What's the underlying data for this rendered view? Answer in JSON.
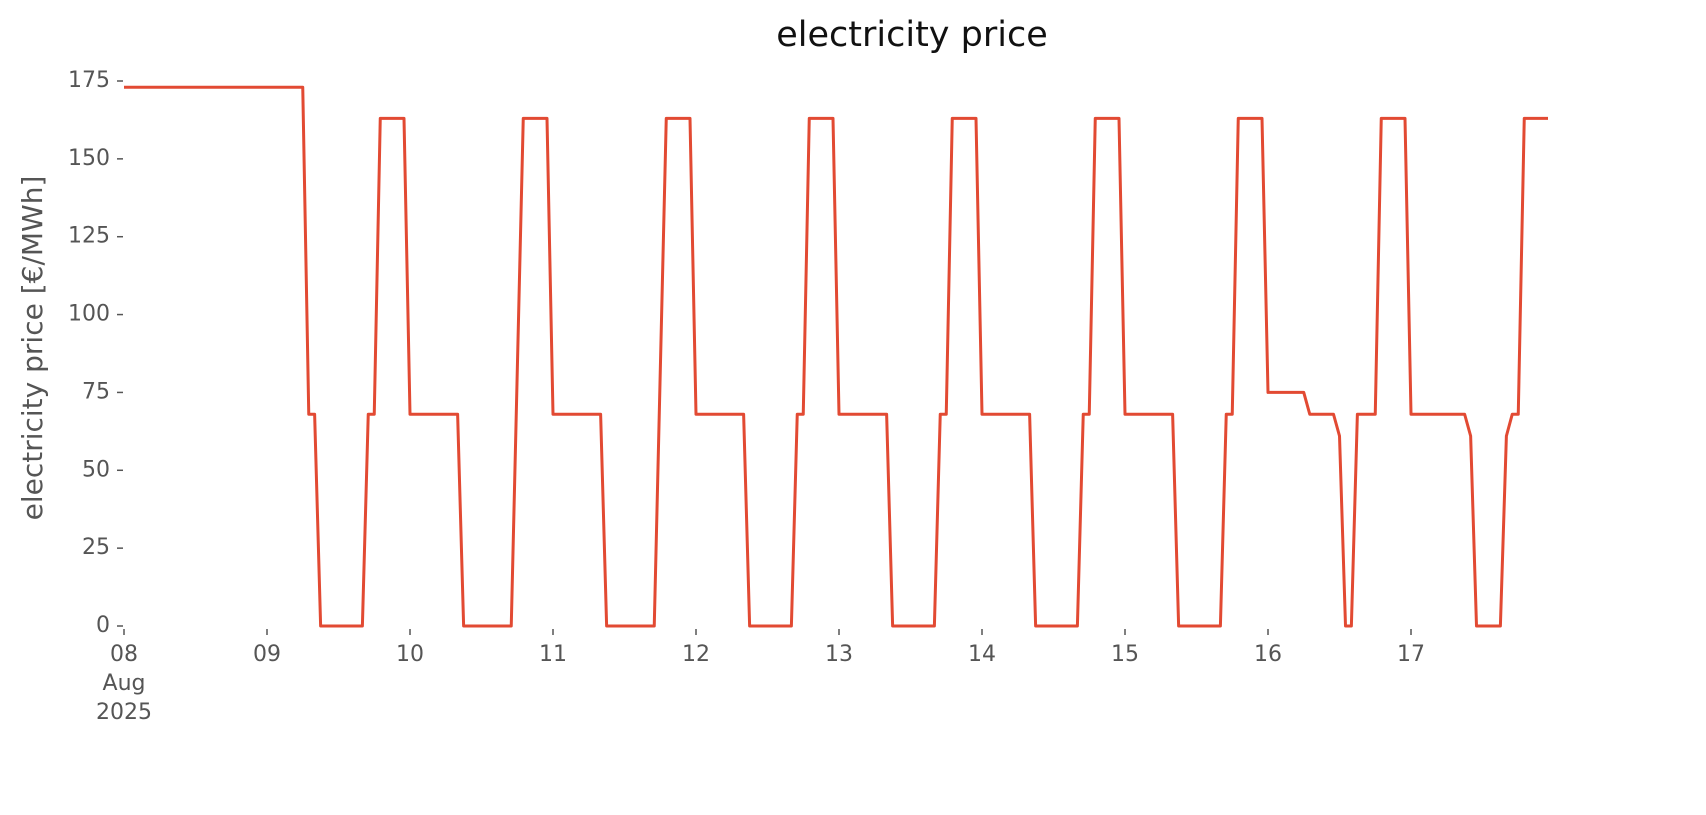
{
  "chart_data": {
    "type": "line",
    "title": "electricity price",
    "ylabel": "electricity price [€/MWh]",
    "x": [
      8,
      9.25,
      9.292,
      9.333,
      9.375,
      9.667,
      9.708,
      9.75,
      9.792,
      9.958,
      10,
      10.333,
      10.375,
      10.708,
      10.792,
      10.958,
      11,
      11.333,
      11.375,
      11.708,
      11.792,
      11.958,
      12,
      12.333,
      12.375,
      12.667,
      12.708,
      12.75,
      12.792,
      12.958,
      13,
      13.333,
      13.375,
      13.667,
      13.708,
      13.75,
      13.792,
      13.958,
      14,
      14.333,
      14.375,
      14.667,
      14.708,
      14.75,
      14.792,
      14.958,
      15,
      15.333,
      15.375,
      15.667,
      15.708,
      15.75,
      15.792,
      15.958,
      16,
      16.25,
      16.292,
      16.458,
      16.5,
      16.542,
      16.583,
      16.625,
      16.75,
      16.792,
      16.958,
      17,
      17.375,
      17.417,
      17.458,
      17.625,
      17.667,
      17.708,
      17.75,
      17.792,
      17.958
    ],
    "values": [
      173,
      173,
      68,
      68,
      0,
      0,
      68,
      68,
      163,
      163,
      68,
      68,
      0,
      0,
      163,
      163,
      68,
      68,
      0,
      0,
      163,
      163,
      68,
      68,
      0,
      0,
      68,
      68,
      163,
      163,
      68,
      68,
      0,
      0,
      68,
      68,
      163,
      163,
      68,
      68,
      0,
      0,
      68,
      68,
      163,
      163,
      68,
      68,
      0,
      0,
      68,
      68,
      163,
      163,
      75,
      75,
      68,
      68,
      61,
      0,
      0,
      68,
      68,
      163,
      163,
      68,
      68,
      61,
      0,
      0,
      61,
      68,
      68,
      163,
      163
    ],
    "color": "#e24a33",
    "xlim": [
      8,
      17.958
    ],
    "xticks": [
      {
        "value": 8,
        "label": "08\nAug\n2025"
      },
      {
        "value": 9,
        "label": "09"
      },
      10,
      11,
      12,
      13,
      14,
      15,
      16,
      17
    ],
    "ylim": [
      0,
      175
    ],
    "yticks": [
      0,
      25,
      50,
      75,
      100,
      125,
      150,
      175
    ],
    "grid": false
  }
}
